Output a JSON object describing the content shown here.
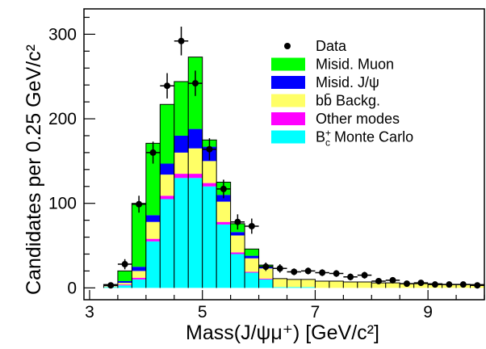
{
  "chart_data": {
    "type": "bar",
    "stacked": true,
    "histogram": true,
    "xlabel": "Mass(J/ψμ⁺)   [GeV/c²]",
    "ylabel": "Candidates per 0.25 GeV/c²",
    "xlim": [
      2.9,
      10.0
    ],
    "ylim": [
      -14,
      330
    ],
    "xticks": [
      "3",
      "5",
      "7",
      "9"
    ],
    "yticks": [
      "0",
      "100",
      "200",
      "300"
    ],
    "bin_width": 0.25,
    "bins": [
      3.25,
      3.5,
      3.75,
      4.0,
      4.25,
      4.5,
      4.75,
      5.0,
      5.25,
      5.5,
      5.75,
      6.0,
      6.25,
      6.5,
      6.75,
      7.0,
      7.25,
      7.5,
      7.75,
      8.0,
      8.25,
      8.5,
      8.75,
      9.0,
      9.25,
      9.5,
      9.75
    ],
    "series": [
      {
        "name": "B_c^+ Monte Carlo",
        "label_main": "B",
        "label_sup": "+",
        "label_sub": "c",
        "label_rest": " Monte Carlo",
        "color": "#00ffff",
        "values": [
          1,
          3,
          10,
          55,
          105,
          130,
          130,
          120,
          75,
          40,
          18,
          10,
          1,
          1,
          1,
          0,
          0,
          0,
          0,
          0,
          0,
          0,
          0,
          0,
          0,
          0,
          0
        ]
      },
      {
        "name": "Other modes",
        "label_main": "Other modes",
        "color": "#ff00ff",
        "values": [
          0,
          1,
          2,
          3,
          4,
          5,
          5,
          4,
          3,
          2,
          1,
          1,
          0,
          0,
          0,
          0,
          0,
          0,
          0,
          0,
          0,
          0,
          0,
          0,
          0,
          0,
          0
        ]
      },
      {
        "name": "bb̄ Backg.",
        "label_main": "bb̄ Backg.",
        "color": "#ffff66",
        "values": [
          1,
          2,
          8,
          20,
          25,
          25,
          30,
          26,
          24,
          20,
          16,
          12,
          10,
          9,
          9,
          8,
          8,
          7,
          7,
          6,
          6,
          5,
          5,
          5,
          4,
          4,
          4
        ]
      },
      {
        "name": "Misid. J/ψ",
        "label_main": "Misid. J/ψ",
        "color": "#0000ff",
        "values": [
          1,
          2,
          5,
          8,
          13,
          20,
          23,
          17,
          8,
          4,
          3,
          2,
          0,
          0,
          0,
          0,
          0,
          0,
          0,
          0,
          0,
          0,
          0,
          0,
          0,
          0,
          0
        ]
      },
      {
        "name": "Misid. Muon",
        "label_main": "Misid. Muon",
        "color": "#00ff00",
        "values": [
          1,
          12,
          75,
          85,
          70,
          64,
          85,
          8,
          15,
          10,
          8,
          2,
          0,
          0,
          0,
          0,
          0,
          0,
          0,
          0,
          0,
          0,
          0,
          0,
          0,
          0,
          0
        ]
      }
    ],
    "data": {
      "name": "Data",
      "x": [
        3.375,
        3.625,
        3.875,
        4.125,
        4.375,
        4.625,
        4.875,
        5.125,
        5.375,
        5.625,
        5.875,
        6.125,
        6.375,
        6.625,
        6.875,
        7.125,
        7.375,
        7.625,
        7.875,
        8.125,
        8.375,
        8.625,
        8.875,
        9.125,
        9.375,
        9.625,
        9.875
      ],
      "y": [
        3,
        28,
        99,
        160,
        239,
        292,
        242,
        164,
        117,
        78,
        73,
        25,
        23,
        19,
        20,
        18,
        17,
        13,
        15,
        8,
        9,
        5,
        6,
        4,
        4,
        4,
        3
      ],
      "err": [
        2,
        6,
        10,
        13,
        15,
        17,
        15,
        13,
        11,
        9,
        9,
        5,
        5,
        4,
        4,
        4,
        4,
        4,
        4,
        3,
        3,
        2,
        2,
        2,
        2,
        2,
        2
      ]
    },
    "legend_position": "top-right",
    "grid": false
  }
}
